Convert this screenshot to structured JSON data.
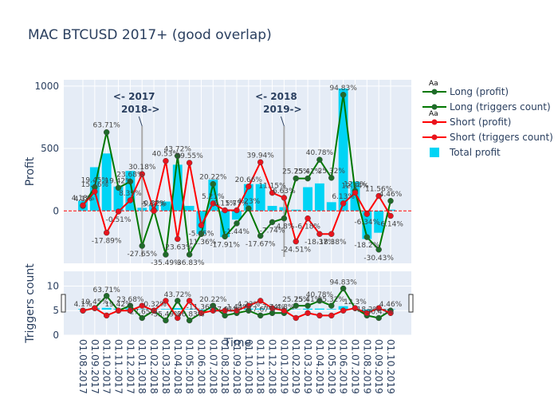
{
  "chart_data": {
    "type": "bar",
    "title": "MAC BTCUSD 2017+ (good overlap)",
    "xlabel": "Time",
    "categories": [
      "01.08.2017",
      "01.09.2017",
      "01.10.2017",
      "01.11.2017",
      "01.12.2017",
      "01.01.2018",
      "01.02.2018",
      "01.03.2018",
      "01.04.2018",
      "01.05.2018",
      "01.06.2018",
      "01.07.2018",
      "01.08.2018",
      "01.09.2018",
      "01.10.2018",
      "01.11.2018",
      "01.12.2018",
      "01.01.2019",
      "01.02.2019",
      "01.03.2019",
      "01.04.2019",
      "01.05.2019",
      "01.06.2019",
      "01.07.2019",
      "01.08.2019",
      "01.09.2019",
      "01.10.2019"
    ],
    "subplots": [
      {
        "name": "profit",
        "ylabel": "Profit",
        "ylim": [
          -420,
          1050
        ],
        "yticks": [
          0,
          500,
          1000
        ],
        "grid": true,
        "series": [
          {
            "name": "Total profit",
            "type": "bar",
            "color": "#00d4f5",
            "values": [
              80,
              350,
              460,
              195,
              320,
              25,
              45,
              75,
              370,
              40,
              -185,
              250,
              -210,
              -70,
              215,
              215,
              40,
              30,
              10,
              190,
              220,
              70,
              980,
              235,
              -225,
              -175,
              10
            ]
          },
          {
            "name": "Long (profit)",
            "type": "line+markers",
            "color": "#007700",
            "marker_color": "#1f6b2a",
            "values": [
              40,
              190,
              630,
              185,
              235,
              -280,
              5,
              -350,
              440,
              -350,
              -185,
              215,
              -205,
              -100,
              20,
              -200,
              -90,
              -60,
              260,
              260,
              410,
              265,
              930,
              160,
              -210,
              -310,
              80
            ],
            "labels": [
              "4.1%",
              "19.45%",
              "63.71%",
              "19.42%",
              "23.68%",
              "-27.65%",
              "-0.32%",
              "-35.49%",
              "43.72%",
              "-36.83%",
              "-11.36%",
              "20.22%",
              "-17.91%",
              "-1.44%",
              "4.23%",
              "-17.67%",
              "-7.74%",
              "-4.8%",
              "25.75%",
              "25.41%",
              "40.78%",
              "25.32%",
              "94.83%",
              "12.3%",
              "-18.2%",
              "-30.43%",
              "4.46%"
            ]
          },
          {
            "name": "Short (profit)",
            "type": "line+markers",
            "color": "#ff0000",
            "marker_color": "#e8141e",
            "values": [
              45,
              155,
              -175,
              -5,
              85,
              295,
              0,
              400,
              -225,
              385,
              -115,
              60,
              5,
              5,
              195,
              390,
              145,
              105,
              -245,
              -60,
              -185,
              -185,
              60,
              145,
              -25,
              120,
              -40
            ],
            "labels": [
              "4.18%",
              "15.36%",
              "-17.89%",
              "-0.51%",
              "8.39%",
              "30.18%",
              "5.67%",
              "40.53%",
              "-23.63%",
              "39.55%",
              "-5.65%",
              "5.21%",
              "0.11%",
              "5.77%",
              "20.66%",
              "39.94%",
              "11.15%",
              "6.63%",
              "-24.51%",
              "-6.18%",
              "-18.37%",
              "-18.38%",
              "6.13%",
              "12.34%",
              "-6.34%",
              "11.56%",
              "-6.14%"
            ]
          }
        ],
        "annotations": [
          {
            "text_line1": "<- 2017",
            "text_line2": "2018->",
            "x": "01.01.2018"
          },
          {
            "text_line1": "<- 2018",
            "text_line2": "2019->",
            "x": "01.01.2019"
          }
        ]
      },
      {
        "name": "triggers",
        "ylabel": "Triggers count",
        "ylim": [
          0,
          13
        ],
        "yticks": [
          0,
          5,
          10
        ],
        "grid": true,
        "series": [
          {
            "name": "Long (triggers count)",
            "type": "line+markers",
            "color": "#007700",
            "values": [
              5,
              5.5,
              8,
              5,
              6,
              3.5,
              5,
              3,
              7,
              3,
              4.5,
              6,
              4,
              4.5,
              5,
              4,
              4.5,
              4.5,
              6,
              6,
              7,
              6,
              9.5,
              5.5,
              4,
              3.5,
              5
            ]
          },
          {
            "name": "Short (triggers count)",
            "type": "line+markers",
            "color": "#ff0000",
            "values": [
              5,
              5.5,
              4,
              5,
              5,
              6,
              5,
              7,
              3.5,
              7,
              4.5,
              5,
              5,
              5,
              6,
              7,
              5.5,
              5,
              3.5,
              4.5,
              4,
              4,
              5,
              5.5,
              4.5,
              5.5,
              4.5
            ]
          }
        ]
      }
    ],
    "legend": {
      "position": "right",
      "entries": [
        {
          "name": "Long (profit)",
          "color": "#007700",
          "marker": "circle",
          "group_label": "Aa"
        },
        {
          "name": "Long (triggers count)",
          "color": "#007700",
          "marker": "circle"
        },
        {
          "name": "Short (profit)",
          "color": "#ff0000",
          "marker": "circle",
          "group_label": "Aa"
        },
        {
          "name": "Short (triggers count)",
          "color": "#ff0000",
          "marker": "circle"
        },
        {
          "name": "Total profit",
          "color": "#00d4f5",
          "marker": "square"
        }
      ]
    }
  }
}
